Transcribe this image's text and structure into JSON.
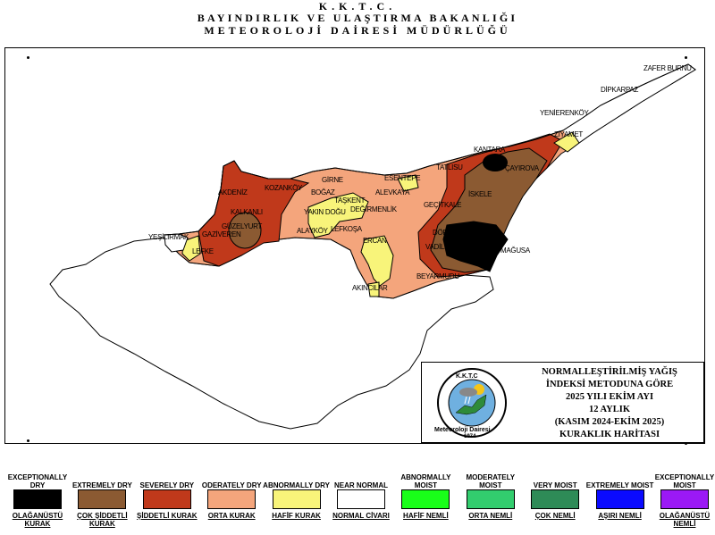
{
  "header": {
    "line1": "K.K.T.C.",
    "line2": "BAYINDIRLIK VE ULAŞTIRMA BAKANLIĞI",
    "line3": "METEOROLOJİ DAİRESİ MÜDÜRLÜĞÜ"
  },
  "info_box": {
    "lines": [
      "NORMALLEŞTİRİLMİŞ YAĞIŞ",
      "İNDEKSİ METODUNA GÖRE",
      "2025 YILI EKİM AYI",
      "12 AYLIK",
      "(KASIM 2024-EKİM 2025)",
      "KURAKLIK HARİTASI"
    ],
    "logo_top": "K.K.T.C",
    "logo_bottom": "Meteoroloji Dairesi",
    "logo_year": "1974"
  },
  "places": [
    {
      "name": "ZAFER BURNU"
    },
    {
      "name": "DİPKARPAZ"
    },
    {
      "name": "YENİERENKÖY"
    },
    {
      "name": "ZİYAMET"
    },
    {
      "name": "KANTARA"
    },
    {
      "name": "TATLISU"
    },
    {
      "name": "ÇAYIROVA"
    },
    {
      "name": "ESENTEPE"
    },
    {
      "name": "GİRNE"
    },
    {
      "name": "KOZANKÖY"
    },
    {
      "name": "AKDENİZ"
    },
    {
      "name": "BOĞAZ"
    },
    {
      "name": "ALEVKAYA"
    },
    {
      "name": "İSKELE"
    },
    {
      "name": "GEÇİTKALE"
    },
    {
      "name": "TAŞKENT"
    },
    {
      "name": "DEĞİRMENLİK"
    },
    {
      "name": "YAKIN DOĞU"
    },
    {
      "name": "KALKANLI"
    },
    {
      "name": "GÜZELYURT"
    },
    {
      "name": "GAZİVEREN"
    },
    {
      "name": "YEŞİLIRMAK"
    },
    {
      "name": "LEFKE"
    },
    {
      "name": "ALAYKÖY"
    },
    {
      "name": "LEFKOŞA"
    },
    {
      "name": "ERCAN"
    },
    {
      "name": "DÖRTYOL"
    },
    {
      "name": "VADİLİ"
    },
    {
      "name": "MAĞUSA"
    },
    {
      "name": "BEYARMUDU"
    },
    {
      "name": "AKINCILAR"
    }
  ],
  "legend": [
    {
      "en": "EXCEPTIONALLY DRY",
      "tr": "OLAĞANÜSTÜ KURAK",
      "color": "#000000"
    },
    {
      "en": "EXTREMELY DRY",
      "tr": "ÇOK ŞİDDETLİ KURAK",
      "color": "#8b5a32"
    },
    {
      "en": "SEVERELY DRY",
      "tr": "ŞİDDETLİ KURAK",
      "color": "#c0391b"
    },
    {
      "en": "ODERATELY DRY",
      "tr": "ORTA KURAK",
      "color": "#f4a57c"
    },
    {
      "en": "ABNORMALLY DRY",
      "tr": "HAFİF KURAK",
      "color": "#f8f47a"
    },
    {
      "en": "NEAR NORMAL",
      "tr": "NORMAL CİVARI",
      "color": "#ffffff"
    },
    {
      "en": "ABNORMALLY MOIST",
      "tr": "HAFİF NEMLİ",
      "color": "#19ff19"
    },
    {
      "en": "MODERATELY MOIST",
      "tr": "ORTA NEMLİ",
      "color": "#32cd6e"
    },
    {
      "en": "VERY MOIST",
      "tr": "ÇOK NEMLİ",
      "color": "#2e8b57"
    },
    {
      "en": "EXTREMELY MOIST",
      "tr": "AŞIRI NEMLİ",
      "color": "#0a0aff"
    },
    {
      "en": "EXCEPTIONALLY MOIST",
      "tr": "OLAĞANÜSTÜ NEMLİ",
      "color": "#9b19f5"
    }
  ]
}
